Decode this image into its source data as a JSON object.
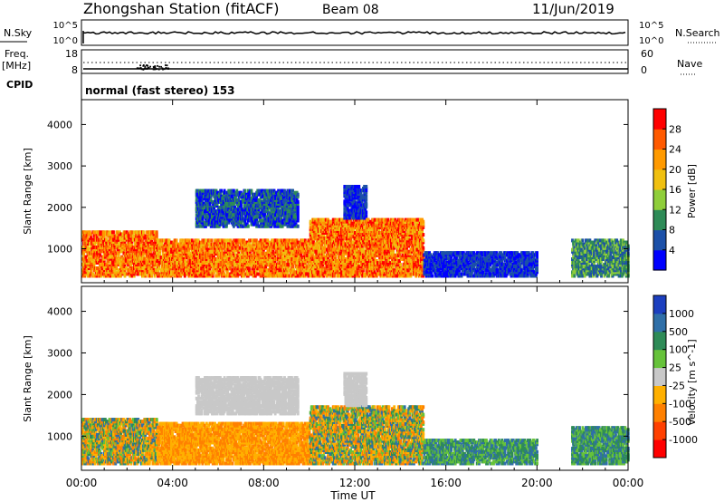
{
  "header": {
    "station": "Zhongshan Station (fitACF)",
    "beam": "Beam 08",
    "date": "11/Jun/2019"
  },
  "sky_panel": {
    "left_label": "N.Sky",
    "left_ticks": [
      "10^5",
      "10^0"
    ],
    "right_ticks": [
      "10^5",
      "10^0"
    ],
    "right_label": "N.Search"
  },
  "freq_panel": {
    "left_label_line1": "Freq.",
    "left_label_line2": "[MHz]",
    "left_ticks": [
      "18",
      "8"
    ],
    "right_ticks": [
      "60",
      "0"
    ],
    "right_label": "Nave"
  },
  "cpid": {
    "label": "CPID",
    "text": "normal (fast stereo) 153"
  },
  "x_axis": {
    "ticks": [
      "00:00",
      "04:00",
      "08:00",
      "12:00",
      "16:00",
      "20:00",
      "00:00"
    ],
    "label": "Time UT"
  },
  "chart_data": [
    {
      "type": "heatmap",
      "quantity": "Power",
      "colorbar_label": "Power [dB]",
      "colorbar_ticks": [
        "4",
        "8",
        "12",
        "16",
        "20",
        "24",
        "28"
      ],
      "colorbar_range": [
        0,
        32
      ],
      "colors": [
        "#0000ff",
        "#1c50a8",
        "#2e8b57",
        "#8fce3a",
        "#f0c010",
        "#ff9a00",
        "#ff5a00",
        "#ff0000"
      ],
      "ylabel": "Slant Range [km]",
      "y_ticks": [
        "1000",
        "2000",
        "3000",
        "4000"
      ],
      "ylim": [
        180,
        4600
      ],
      "xlim_hours": [
        0,
        24
      ],
      "echo_regions": [
        {
          "t": [
            0.0,
            3.3
          ],
          "range_km": [
            300,
            1400
          ],
          "dominant": "orange-red"
        },
        {
          "t": [
            3.3,
            10.0
          ],
          "range_km": [
            300,
            1200
          ],
          "dominant": "orange-red"
        },
        {
          "t": [
            5.0,
            9.5
          ],
          "range_km": [
            1500,
            2400
          ],
          "dominant": "blue-green"
        },
        {
          "t": [
            10.0,
            15.0
          ],
          "range_km": [
            300,
            1700
          ],
          "dominant": "orange-red"
        },
        {
          "t": [
            11.5,
            12.5
          ],
          "range_km": [
            1700,
            2500
          ],
          "dominant": "blue"
        },
        {
          "t": [
            15.0,
            20.0
          ],
          "range_km": [
            300,
            900
          ],
          "dominant": "blue"
        },
        {
          "t": [
            21.5,
            24.0
          ],
          "range_km": [
            300,
            1200
          ],
          "dominant": "green"
        }
      ]
    },
    {
      "type": "heatmap",
      "quantity": "Velocity",
      "colorbar_label": "Velocity [m s^-1]",
      "colorbar_ticks": [
        "1000",
        "500",
        "100",
        "25",
        "-25",
        "-100",
        "-500",
        "-1000"
      ],
      "colors": [
        "#1c3fbf",
        "#2f6fa8",
        "#2e8b57",
        "#66c23a",
        "#c8c8c8",
        "#ffb000",
        "#ff8000",
        "#ff4000",
        "#ff0000"
      ],
      "ylabel": "Slant Range [km]",
      "y_ticks": [
        "1000",
        "2000",
        "3000",
        "4000"
      ],
      "ylim": [
        180,
        4600
      ],
      "xlim_hours": [
        0,
        24
      ],
      "echo_regions": [
        {
          "t": [
            0.0,
            3.3
          ],
          "range_km": [
            300,
            1400
          ],
          "dominant": "orange-green"
        },
        {
          "t": [
            3.3,
            10.0
          ],
          "range_km": [
            300,
            1300
          ],
          "dominant": "orange"
        },
        {
          "t": [
            5.0,
            9.5
          ],
          "range_km": [
            1500,
            2400
          ],
          "dominant": "grey"
        },
        {
          "t": [
            10.0,
            15.0
          ],
          "range_km": [
            300,
            1700
          ],
          "dominant": "orange-green"
        },
        {
          "t": [
            11.5,
            12.5
          ],
          "range_km": [
            1700,
            2500
          ],
          "dominant": "grey"
        },
        {
          "t": [
            15.0,
            20.0
          ],
          "range_km": [
            300,
            900
          ],
          "dominant": "green"
        },
        {
          "t": [
            21.5,
            24.0
          ],
          "range_km": [
            300,
            1200
          ],
          "dominant": "green"
        }
      ]
    }
  ]
}
